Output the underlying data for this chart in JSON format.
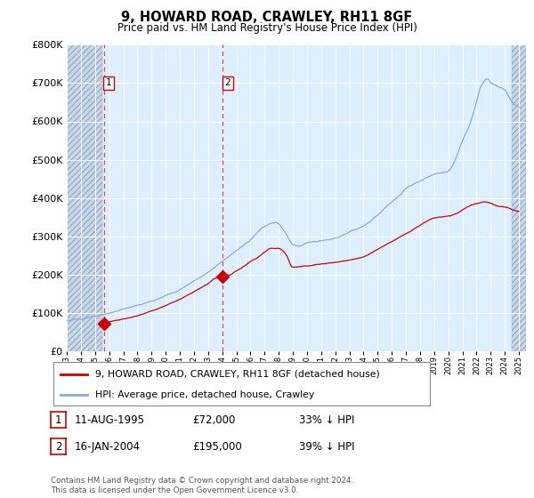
{
  "title": "9, HOWARD ROAD, CRAWLEY, RH11 8GF",
  "subtitle": "Price paid vs. HM Land Registry's House Price Index (HPI)",
  "ytick_vals": [
    0,
    100000,
    200000,
    300000,
    400000,
    500000,
    600000,
    700000,
    800000
  ],
  "ylim": [
    0,
    800000
  ],
  "xlim_start": 1993.0,
  "xlim_end": 2025.5,
  "sale1_x": 1995.62,
  "sale1_y": 72000,
  "sale1_label": "11-AUG-1995",
  "sale1_price": "£72,000",
  "sale1_hpi": "33% ↓ HPI",
  "sale2_x": 2004.04,
  "sale2_y": 195000,
  "sale2_label": "16-JAN-2004",
  "sale2_price": "£195,000",
  "sale2_hpi": "39% ↓ HPI",
  "hatch_end1": 1995.5,
  "hatch_start2": 2024.5,
  "line_color_price": "#cc0000",
  "line_color_hpi": "#88aadd",
  "dot_color": "#cc0000",
  "dashed_line_color": "#ee4444",
  "legend_label1": "9, HOWARD ROAD, CRAWLEY, RH11 8GF (detached house)",
  "legend_label2": "HPI: Average price, detached house, Crawley",
  "footer": "Contains HM Land Registry data © Crown copyright and database right 2024.\nThis data is licensed under the Open Government Licence v3.0.",
  "bg_color": "#ddeeff",
  "hatch_bg_color": "#c8d8e8",
  "white_bg_start": 1995.5,
  "white_bg_end": 2024.5
}
